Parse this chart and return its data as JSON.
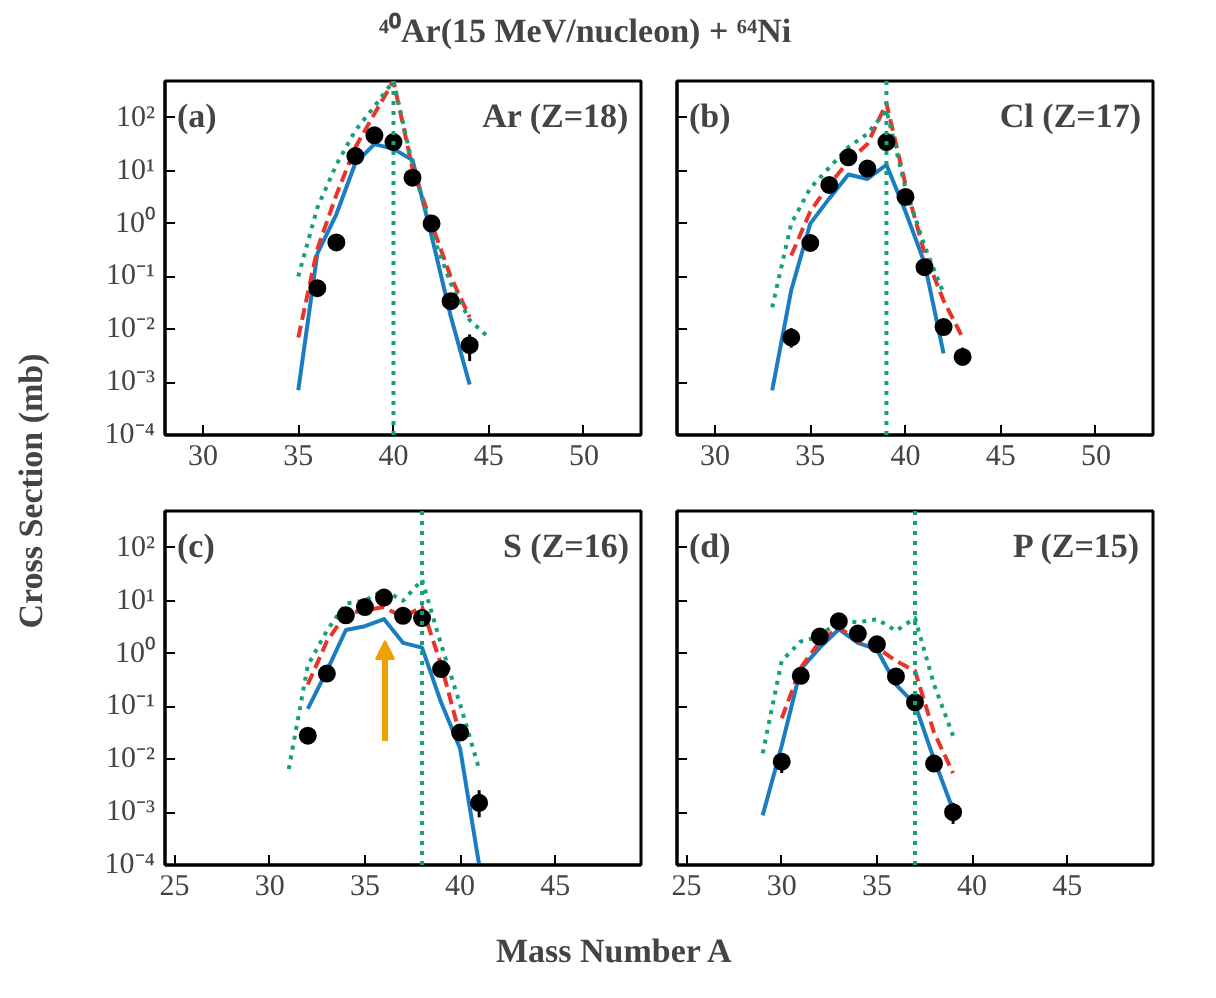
{
  "chart_data": [
    {
      "type": "line",
      "title": "⁴⁰Ar(15 MeV/nucleon) + ⁶⁴Ni",
      "ylabel": "Cross Section (mb)",
      "annotations": [
        "(a)",
        "Ar (Z=18)"
      ],
      "log": true,
      "xlim": [
        28,
        53
      ],
      "xticks": [
        30,
        35,
        40,
        45,
        50
      ],
      "ylim": [
        0.0001,
        500
      ],
      "yticks": [
        {
          "value": 0.0001,
          "label": "10⁻⁴"
        },
        {
          "value": 0.001,
          "label": "10⁻³"
        },
        {
          "value": 0.01,
          "label": "10⁻²"
        },
        {
          "value": 0.1,
          "label": "10⁻¹"
        },
        {
          "value": 1,
          "label": "10⁰"
        },
        {
          "value": 10,
          "label": "10¹"
        },
        {
          "value": 100,
          "label": "10²"
        }
      ],
      "ref_lines": [
        {
          "axis": "x",
          "value": 40,
          "color": "#13a07a",
          "line_style": "dotted"
        }
      ],
      "series": [
        {
          "color": "#1a7cc1",
          "line_style": "solid",
          "x": [
            35,
            36,
            37,
            38,
            39,
            40,
            41,
            42,
            43,
            44
          ],
          "values": [
            0.0007,
            0.27,
            1.5,
            14,
            32,
            26,
            16,
            0.59,
            0.018,
            0.0009
          ]
        },
        {
          "color": "#e8352a",
          "line_style": "dashed",
          "x": [
            35,
            36,
            37,
            38,
            39,
            40,
            41,
            42,
            43,
            44
          ],
          "values": [
            0.007,
            0.33,
            3.5,
            28,
            120,
            500,
            11,
            1.0,
            0.1,
            0.017
          ]
        },
        {
          "color": "#13a07a",
          "line_style": "dotted",
          "x": [
            35,
            36,
            37,
            38,
            39,
            40,
            41,
            42,
            43,
            44,
            45
          ],
          "values": [
            0.1,
            2,
            13,
            58,
            165,
            500,
            13,
            0.7,
            0.075,
            0.015,
            0.007
          ]
        },
        {
          "type": "scatter",
          "marker": "circle",
          "color": "#000000",
          "x": [
            36,
            37,
            38,
            39,
            40,
            41,
            42,
            43,
            44
          ],
          "values": [
            0.06,
            0.44,
            19,
            47,
            35,
            7.4,
            1.0,
            0.034,
            0.005
          ],
          "errors": [
            null,
            null,
            null,
            null,
            null,
            null,
            null,
            null,
            [
              0.0025,
              0.008
            ]
          ]
        }
      ]
    },
    {
      "type": "line",
      "annotations": [
        "(b)",
        "Cl (Z=17)"
      ],
      "log": true,
      "tick_labels": "x",
      "xlim": [
        28,
        53
      ],
      "xticks": [
        30,
        35,
        40,
        45,
        50
      ],
      "ylim": [
        0.0001,
        500
      ],
      "yticks": [
        {
          "value": 0.0001,
          "label": null
        },
        {
          "value": 0.001,
          "label": null
        },
        {
          "value": 0.01,
          "label": null
        },
        {
          "value": 0.1,
          "label": null
        },
        {
          "value": 1,
          "label": null
        },
        {
          "value": 10,
          "label": null
        },
        {
          "value": 100,
          "label": null
        }
      ],
      "ref_lines": [
        {
          "axis": "x",
          "value": 39,
          "color": "#13a07a",
          "line_style": "dotted"
        }
      ],
      "series": [
        {
          "color": "#1a7cc1",
          "line_style": "solid",
          "x": [
            33,
            34,
            35,
            36,
            37,
            38,
            39,
            40,
            41,
            42
          ],
          "values": [
            0.0007,
            0.055,
            1.0,
            3,
            8.5,
            7,
            13,
            1.7,
            0.18,
            0.0035
          ]
        },
        {
          "color": "#e8352a",
          "line_style": "dashed",
          "x": [
            34,
            35,
            36,
            37,
            38,
            39,
            40,
            41,
            42,
            43
          ],
          "values": [
            0.25,
            1.7,
            5.5,
            15,
            32,
            190,
            5.5,
            0.28,
            0.035,
            0.007
          ]
        },
        {
          "color": "#13a07a",
          "line_style": "dotted",
          "x": [
            33,
            34,
            35,
            36,
            37,
            38,
            39,
            40,
            41,
            42
          ],
          "values": [
            0.026,
            1.0,
            4.7,
            11.5,
            28,
            50,
            140,
            4.7,
            0.38,
            0.048
          ]
        },
        {
          "type": "scatter",
          "marker": "circle",
          "color": "#000000",
          "x": [
            34,
            35,
            36,
            37,
            38,
            39,
            40,
            41,
            42,
            43
          ],
          "values": [
            0.007,
            0.43,
            5.4,
            18,
            11,
            35,
            3.2,
            0.15,
            0.011,
            0.003
          ],
          "errors": [
            [
              0.0045,
              0.0105
            ],
            null,
            null,
            null,
            null,
            null,
            null,
            null,
            null,
            [
              0.0022,
              0.0045
            ]
          ]
        }
      ]
    },
    {
      "type": "line",
      "xlabel": "Mass Number A",
      "annotations": [
        "(c)",
        "S (Z=16)"
      ],
      "log": true,
      "xlim": [
        24.5,
        49.5
      ],
      "xticks": [
        25,
        30,
        35,
        40,
        45
      ],
      "ylim": [
        0.0001,
        500
      ],
      "yticks": [
        {
          "value": 0.0001,
          "label": "10⁻⁴"
        },
        {
          "value": 0.001,
          "label": "10⁻³"
        },
        {
          "value": 0.01,
          "label": "10⁻²"
        },
        {
          "value": 0.1,
          "label": "10⁻¹"
        },
        {
          "value": 1,
          "label": "10⁰"
        },
        {
          "value": 10,
          "label": "10¹"
        },
        {
          "value": 100,
          "label": "10²"
        }
      ],
      "ref_lines": [
        {
          "axis": "x",
          "value": 38,
          "color": "#13a07a",
          "line_style": "dotted"
        }
      ],
      "series": [
        {
          "color": "#1a7cc1",
          "line_style": "solid",
          "x": [
            32,
            33,
            34,
            35,
            36,
            37,
            38,
            39,
            40,
            41
          ],
          "values": [
            0.09,
            0.47,
            2.8,
            3.3,
            4.5,
            1.6,
            1.3,
            0.12,
            0.016,
            0.0001
          ]
        },
        {
          "color": "#e8352a",
          "line_style": "dashed",
          "x": [
            32,
            33,
            34,
            35,
            36,
            37,
            38,
            39,
            40
          ],
          "values": [
            0.26,
            1.7,
            5.7,
            6.6,
            7.6,
            4.9,
            7.6,
            0.62,
            0.028
          ]
        },
        {
          "color": "#13a07a",
          "line_style": "dotted",
          "x": [
            31,
            32,
            33,
            34,
            35,
            36,
            37,
            38,
            39,
            40,
            41
          ],
          "values": [
            0.0065,
            0.6,
            2.7,
            8.9,
            10,
            16,
            10,
            25,
            1.5,
            0.11,
            0.0065
          ]
        },
        {
          "type": "scatter",
          "marker": "circle",
          "color": "#000000",
          "x": [
            32,
            33,
            34,
            35,
            36,
            37,
            38,
            39,
            40,
            41
          ],
          "values": [
            0.028,
            0.42,
            5.3,
            7.6,
            11.5,
            5.2,
            4.7,
            0.51,
            0.032,
            0.0015
          ],
          "errors": [
            null,
            null,
            null,
            null,
            null,
            null,
            null,
            null,
            null,
            [
              0.0008,
              0.0026
            ]
          ]
        }
      ]
    },
    {
      "type": "line",
      "annotations": [
        "(d)",
        "P (Z=15)"
      ],
      "log": true,
      "tick_labels": "x",
      "xlim": [
        24.5,
        49.5
      ],
      "xticks": [
        25,
        30,
        35,
        40,
        45
      ],
      "ylim": [
        0.0001,
        500
      ],
      "yticks": [
        {
          "value": 0.0001,
          "label": null
        },
        {
          "value": 0.001,
          "label": null
        },
        {
          "value": 0.01,
          "label": null
        },
        {
          "value": 0.1,
          "label": null
        },
        {
          "value": 1,
          "label": null
        },
        {
          "value": 10,
          "label": null
        },
        {
          "value": 100,
          "label": null
        }
      ],
      "ref_lines": [
        {
          "axis": "x",
          "value": 37,
          "color": "#13a07a",
          "line_style": "dotted"
        }
      ],
      "series": [
        {
          "color": "#1a7cc1",
          "line_style": "solid",
          "x": [
            29,
            30,
            31,
            32,
            33,
            34,
            35,
            36,
            37,
            38,
            39
          ],
          "values": [
            0.00087,
            0.018,
            0.51,
            1.3,
            2.9,
            1.6,
            1.2,
            0.26,
            0.11,
            0.01,
            0.0011
          ]
        },
        {
          "color": "#e8352a",
          "line_style": "dashed",
          "x": [
            30,
            31,
            32,
            33,
            34,
            35,
            36,
            37,
            38,
            39
          ],
          "values": [
            0.06,
            0.54,
            1.7,
            3.2,
            1.7,
            1.3,
            0.73,
            0.47,
            0.032,
            0.0055
          ]
        },
        {
          "color": "#13a07a",
          "line_style": "dotted",
          "x": [
            29,
            30,
            31,
            32,
            33,
            34,
            35,
            36,
            37,
            38,
            39
          ],
          "values": [
            0.013,
            0.73,
            1.7,
            2.1,
            4.3,
            3.9,
            4.5,
            2.7,
            4.7,
            0.26,
            0.028
          ]
        },
        {
          "type": "scatter",
          "marker": "circle",
          "color": "#000000",
          "x": [
            30,
            31,
            32,
            33,
            34,
            35,
            36,
            37,
            38,
            39
          ],
          "values": [
            0.009,
            0.38,
            2.1,
            4.1,
            2.4,
            1.5,
            0.37,
            0.12,
            0.0083,
            0.001
          ],
          "errors": [
            [
              0.0055,
              0.013
            ],
            null,
            null,
            null,
            null,
            null,
            null,
            null,
            null,
            [
              0.0006,
              0.0015
            ]
          ]
        }
      ]
    }
  ]
}
